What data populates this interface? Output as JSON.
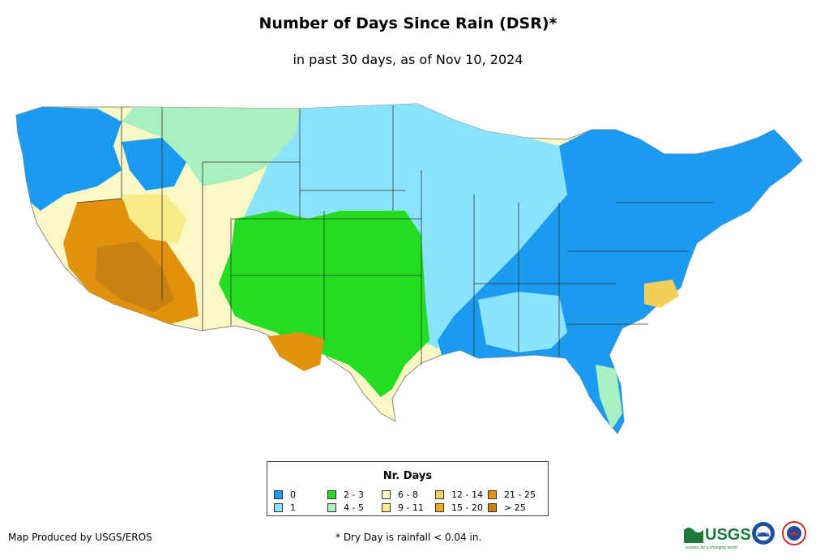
{
  "title": "Number of Days Since Rain (DSR)*",
  "subtitle": "in past 30 days, as of Nov 10, 2024",
  "legend": {
    "title": "Nr. Days",
    "items": [
      {
        "label": "0",
        "color": "#1a9bf0"
      },
      {
        "label": "1",
        "color": "#8ae4ff"
      },
      {
        "label": "2 - 3",
        "color": "#22dd22"
      },
      {
        "label": "4 - 5",
        "color": "#a8f0c0"
      },
      {
        "label": "6 - 8",
        "color": "#fbf8c6"
      },
      {
        "label": "9 - 11",
        "color": "#f7ec88"
      },
      {
        "label": "12 - 14",
        "color": "#f2cf5a"
      },
      {
        "label": "15 - 20",
        "color": "#eeaa1f"
      },
      {
        "label": "21 - 25",
        "color": "#e0920e"
      },
      {
        "label": "> 25",
        "color": "#c98211"
      }
    ]
  },
  "footer": {
    "credit": "Map Produced by USGS/EROS",
    "note": "* Dry Day is rainfall < 0.04 in."
  },
  "logos": {
    "usgs": "USGS",
    "usgs_tagline": "science for a changing world",
    "noaa": "NOAA"
  }
}
